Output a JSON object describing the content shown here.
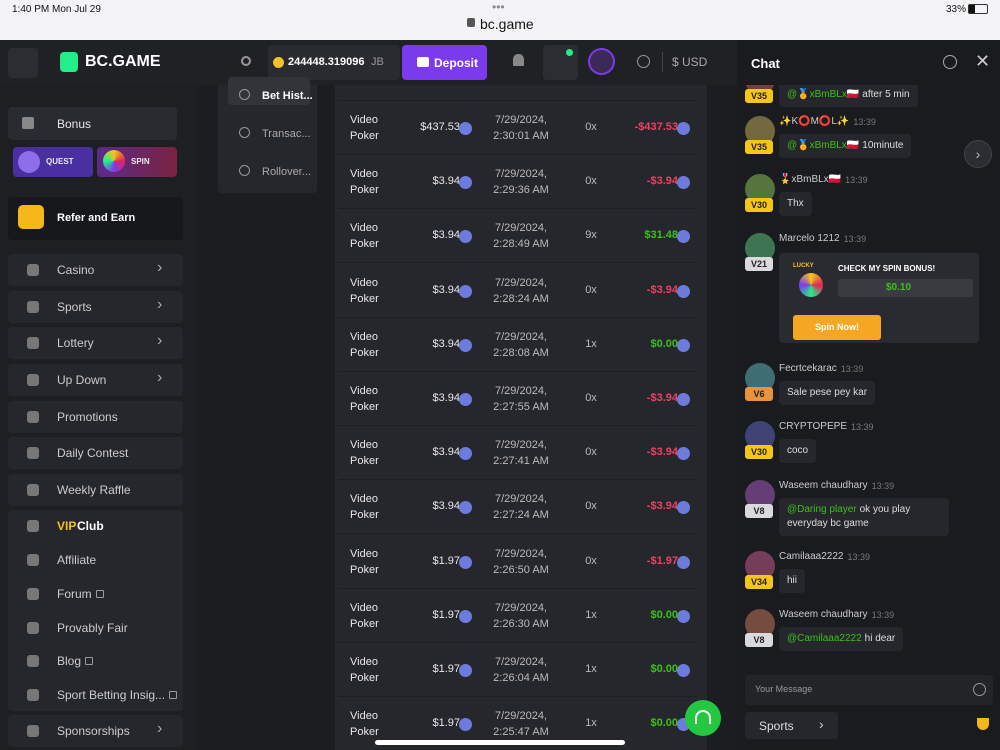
{
  "status": {
    "time": "1:40 PM",
    "date": "Mon Jul 29",
    "url": "bc.game",
    "battery": "33%"
  },
  "header": {
    "logo": "BC.GAME",
    "balance": "244448.319096",
    "currency": "JB",
    "deposit": "Deposit",
    "fiat": "$ USD"
  },
  "sidebar": {
    "bonus": "Bonus",
    "quest": "QUEST",
    "spin": "SPIN",
    "refer": "Refer and Earn",
    "items": [
      {
        "label": "Casino",
        "arrow": true
      },
      {
        "label": "Sports",
        "arrow": true
      },
      {
        "label": "Lottery",
        "arrow": true
      },
      {
        "label": "Up Down",
        "arrow": true
      },
      {
        "label": "Promotions"
      },
      {
        "label": "Daily Contest"
      },
      {
        "label": "Weekly Raffle"
      },
      {
        "highlight": "VIP",
        "label": "Club"
      },
      {
        "label": "Affiliate"
      },
      {
        "label": "Forum",
        "external": true
      },
      {
        "label": "Provably Fair"
      },
      {
        "label": "Blog",
        "external": true
      },
      {
        "label": "Sport Betting Insig...",
        "external": true
      },
      {
        "label": "Sponsorships",
        "arrow": true
      }
    ]
  },
  "tabs": [
    "Bet Hist...",
    "Transac...",
    "Rollover..."
  ],
  "bets": {
    "rows": [
      {
        "game": "Video Poker",
        "amount": "$437.53",
        "time": "7/29/2024, 2:30:01 AM",
        "multiplier": "0x",
        "profit": "-$437.53"
      },
      {
        "game": "Video Poker",
        "amount": "$3.94",
        "time": "7/29/2024, 2:29:36 AM",
        "multiplier": "0x",
        "profit": "-$3.94"
      },
      {
        "game": "Video Poker",
        "amount": "$3.94",
        "time": "7/29/2024, 2:28:49 AM",
        "multiplier": "9x",
        "profit": "$31.48"
      },
      {
        "game": "Video Poker",
        "amount": "$3.94",
        "time": "7/29/2024, 2:28:24 AM",
        "multiplier": "0x",
        "profit": "-$3.94"
      },
      {
        "game": "Video Poker",
        "amount": "$3.94",
        "time": "7/29/2024, 2:28:08 AM",
        "multiplier": "1x",
        "profit": "$0.00"
      },
      {
        "game": "Video Poker",
        "amount": "$3.94",
        "time": "7/29/2024, 2:27:55 AM",
        "multiplier": "0x",
        "profit": "-$3.94"
      },
      {
        "game": "Video Poker",
        "amount": "$3.94",
        "time": "7/29/2024, 2:27:41 AM",
        "multiplier": "0x",
        "profit": "-$3.94"
      },
      {
        "game": "Video Poker",
        "amount": "$3.94",
        "time": "7/29/2024, 2:27:24 AM",
        "multiplier": "0x",
        "profit": "-$3.94"
      },
      {
        "game": "Video Poker",
        "amount": "$1.97",
        "time": "7/29/2024, 2:26:50 AM",
        "multiplier": "0x",
        "profit": "-$1.97"
      },
      {
        "game": "Video Poker",
        "amount": "$1.97",
        "time": "7/29/2024, 2:26:30 AM",
        "multiplier": "1x",
        "profit": "$0.00"
      },
      {
        "game": "Video Poker",
        "amount": "$1.97",
        "time": "7/29/2024, 2:26:04 AM",
        "multiplier": "1x",
        "profit": "$0.00"
      },
      {
        "game": "Video Poker",
        "amount": "$1.97",
        "time": "7/29/2024, 2:25:47 AM",
        "multiplier": "1x",
        "profit": "$0.00"
      }
    ]
  },
  "chat": {
    "title": "Chat",
    "messages": [
      {
        "level": "V35",
        "mention": "@🏅xBmBLx🇵🇱",
        "text": "after 5 min"
      },
      {
        "user": "✨K⭕M⭕L✨",
        "time": "13:39",
        "level": "V35",
        "mention": "@🏅xBmBLx🇵🇱",
        "text": "10minute"
      },
      {
        "user": "🎖️xBmBLx🇵🇱",
        "time": "13:39",
        "level": "V30",
        "text": "Thx"
      },
      {
        "user": "Marcelo 1212",
        "time": "13:39",
        "level": "V21",
        "card": {
          "badge": "LUCKY",
          "title": "CHECK MY SPIN BONUS!",
          "amount": "$0.10",
          "button": "Spin Now!"
        }
      },
      {
        "user": "Fecrtcekarac",
        "time": "13:39",
        "level": "V6",
        "text": "Sale pese pey kar"
      },
      {
        "user": "CRYPTOPEPE",
        "time": "13:39",
        "level": "V30",
        "text": "coco"
      },
      {
        "user": "Waseem chaudhary",
        "time": "13:39",
        "level": "V8",
        "mention": "@Daring player",
        "text": "ok you play everyday bc game"
      },
      {
        "user": "Camilaaa2222",
        "time": "13:39",
        "level": "V34",
        "text": "hii"
      },
      {
        "user": "Waseem chaudhary",
        "time": "13:39",
        "level": "V8",
        "mention": "@Camilaaa2222",
        "text": "hi dear"
      }
    ],
    "input_placeholder": "Your Message",
    "tab": "Sports"
  }
}
